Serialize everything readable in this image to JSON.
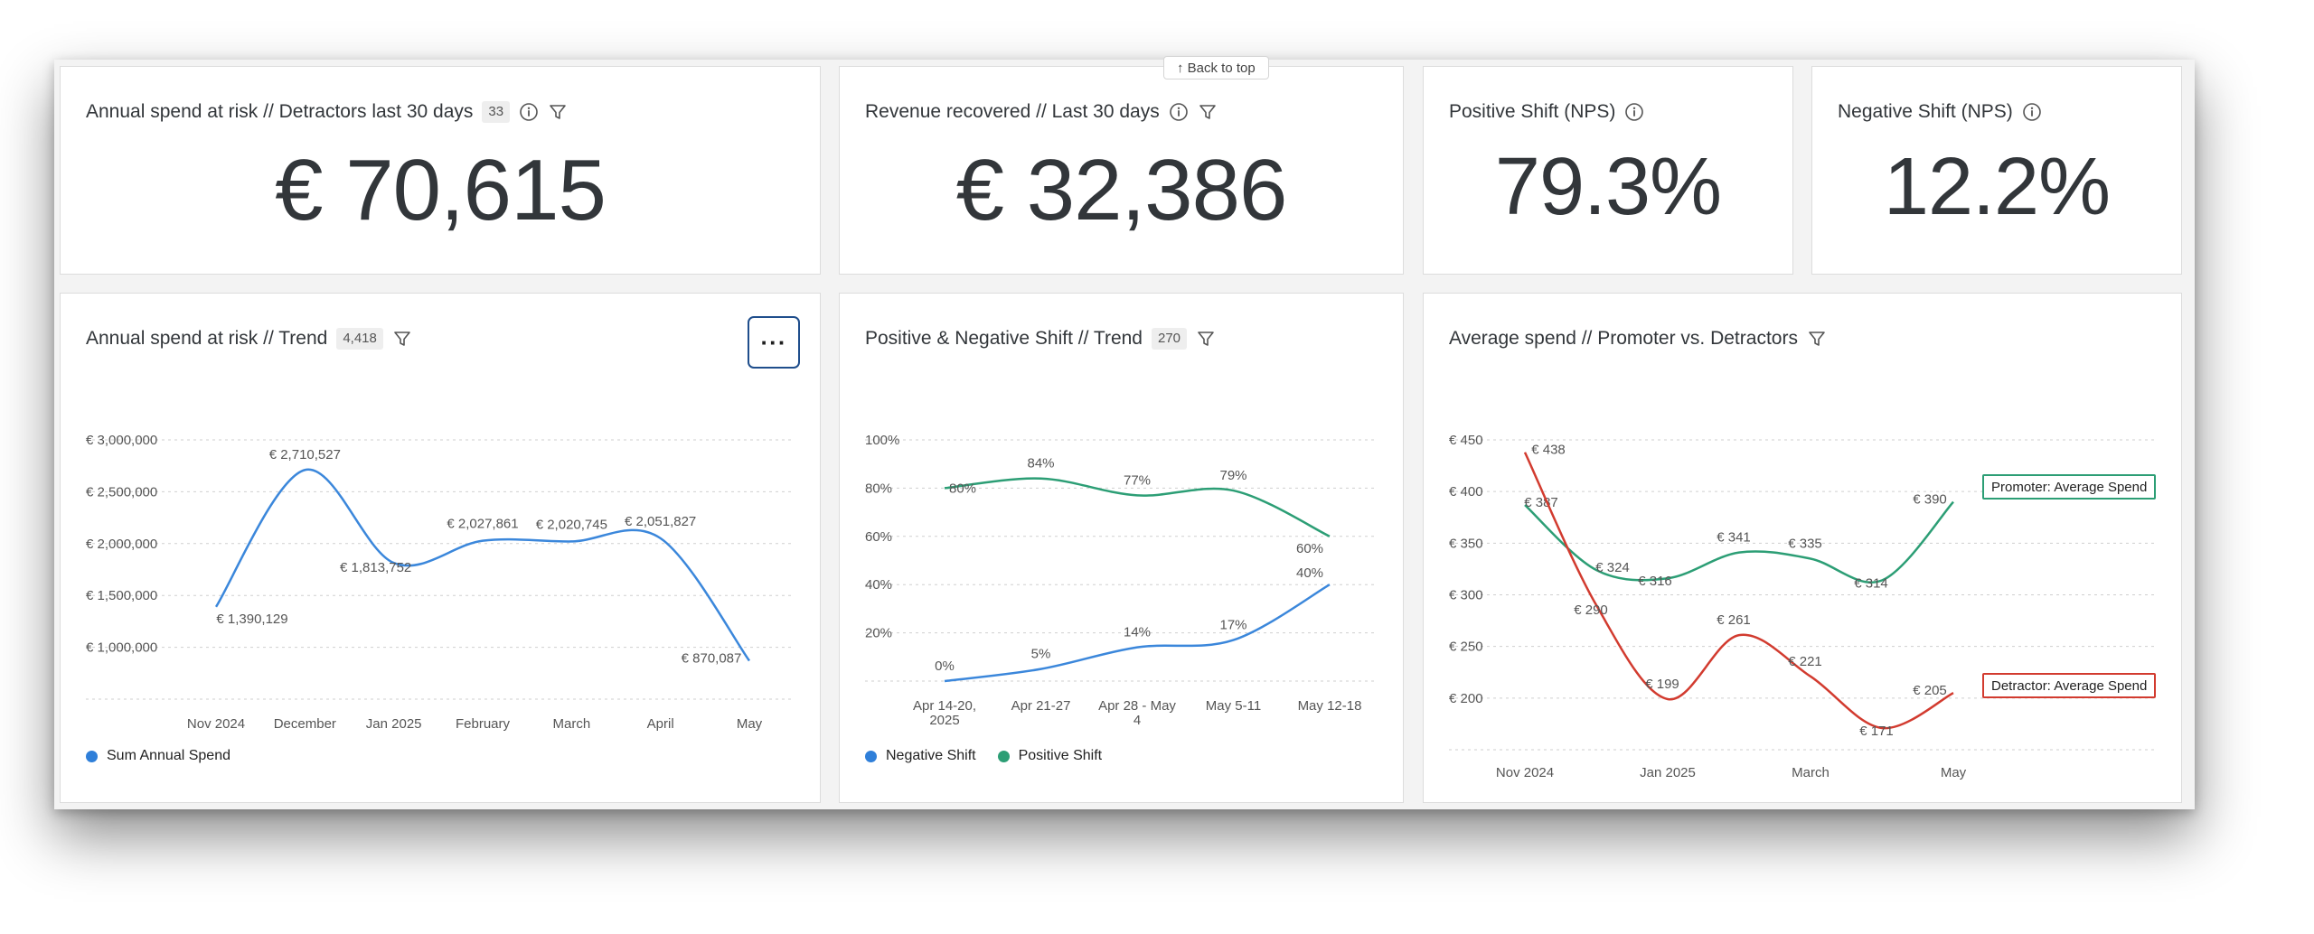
{
  "back_to_top": "↑ Back to top",
  "colors": {
    "blue": "#3b87db",
    "green": "#2c9e75",
    "red": "#d23b2f",
    "grid": "#cfcfcf"
  },
  "kpi_cards": [
    {
      "title": "Annual spend at risk // Detractors last 30 days",
      "count": "33",
      "value": "€ 70,615",
      "icons": [
        "info-icon",
        "filter-icon"
      ]
    },
    {
      "title": "Revenue recovered // Last 30 days",
      "value": "€ 32,386",
      "icons": [
        "info-icon",
        "filter-icon"
      ]
    },
    {
      "title": "Positive Shift (NPS)",
      "value": "79.3%",
      "icons": [
        "info-icon"
      ]
    },
    {
      "title": "Negative Shift (NPS)",
      "value": "12.2%",
      "icons": [
        "info-icon"
      ]
    }
  ],
  "trend_card": {
    "title": "Annual spend at risk // Trend",
    "count": "4,418",
    "more": "···",
    "legend": [
      "Sum Annual Spend"
    ]
  },
  "shift_card": {
    "title": "Positive & Negative Shift // Trend",
    "count": "270",
    "legend": [
      "Negative Shift",
      "Positive Shift"
    ]
  },
  "avg_card": {
    "title": "Average spend // Promoter vs. Detractors",
    "promoter_tag": "Promoter: Average Spend",
    "detractor_tag": "Detractor: Average Spend"
  },
  "chart_data": [
    {
      "type": "line",
      "title": "Annual spend at risk // Trend",
      "categories": [
        "Nov 2024",
        "December",
        "Jan 2025",
        "February",
        "March",
        "April",
        "May"
      ],
      "y_ticks": [
        "€ 1,000,000",
        "€ 1,500,000",
        "€ 2,000,000",
        "€ 2,500,000",
        "€ 3,000,000"
      ],
      "ylim": [
        500000,
        3000000
      ],
      "series": [
        {
          "name": "Sum Annual Spend",
          "color": "#3b87db",
          "values": [
            1390129,
            2710527,
            1813752,
            2027861,
            2020745,
            2051827,
            870087
          ],
          "labels": [
            "€ 1,390,129",
            "€ 2,710,527",
            "€ 1,813,752",
            "€ 2,027,861",
            "€ 2,020,745",
            "€ 2,051,827",
            "€ 870,087"
          ]
        }
      ]
    },
    {
      "type": "line",
      "title": "Positive & Negative Shift // Trend",
      "categories": [
        "Apr 14-20, 2025",
        "Apr 21-27",
        "Apr 28 - May 4",
        "May 5-11",
        "May 12-18"
      ],
      "y_ticks": [
        "20%",
        "40%",
        "60%",
        "80%",
        "100%"
      ],
      "ylim": [
        0,
        100
      ],
      "series": [
        {
          "name": "Negative Shift",
          "color": "#3b87db",
          "values": [
            0,
            5,
            14,
            17,
            40
          ],
          "labels": [
            "0%",
            "5%",
            "14%",
            "17%",
            "40%"
          ]
        },
        {
          "name": "Positive Shift",
          "color": "#2c9e75",
          "values": [
            80,
            84,
            77,
            79,
            60
          ],
          "labels": [
            "80%",
            "84%",
            "77%",
            "79%",
            "60%"
          ]
        }
      ]
    },
    {
      "type": "line",
      "title": "Average spend // Promoter vs. Detractors",
      "x_ticks": [
        "Nov 2024",
        "Jan 2025",
        "March",
        "May"
      ],
      "y_ticks": [
        "€ 200",
        "€ 250",
        "€ 300",
        "€ 350",
        "€ 400",
        "€ 450"
      ],
      "ylim": [
        150,
        450
      ],
      "series": [
        {
          "name": "Promoter: Average Spend",
          "color": "#2c9e75",
          "values": [
            387,
            324,
            316,
            341,
            335,
            314,
            390
          ],
          "labels": [
            "€ 387",
            "€ 324",
            "€ 316",
            "€ 341",
            "€ 335",
            "€ 314",
            "€ 390"
          ]
        },
        {
          "name": "Detractor: Average Spend",
          "color": "#d23b2f",
          "values": [
            438,
            290,
            199,
            261,
            221,
            171,
            205
          ],
          "labels": [
            "€ 438",
            "€ 290",
            "€ 199",
            "€ 261",
            "€ 221",
            "€ 171",
            "€ 205"
          ]
        }
      ]
    }
  ]
}
